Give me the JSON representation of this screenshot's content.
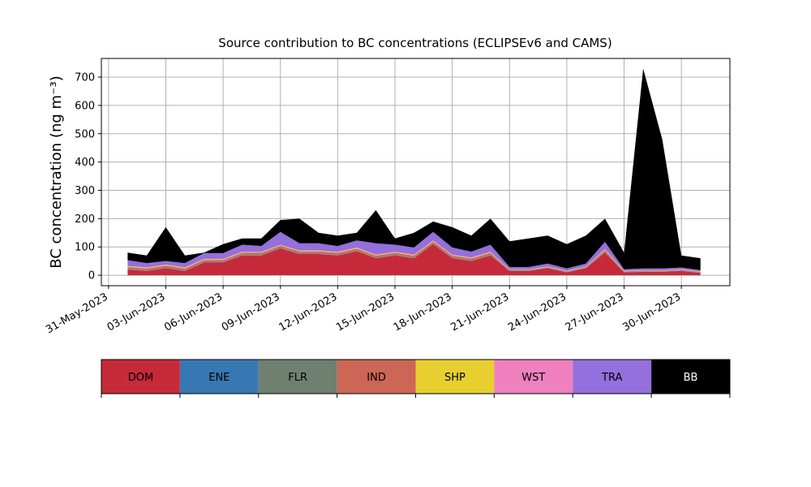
{
  "chart_data": {
    "type": "stacked_area",
    "title": "Source contribution to BC concentrations (ECLIPSEv6 and CAMS)",
    "y_label": "BC concentration (ng m⁻³)",
    "x": [
      "2023-06-01",
      "2023-06-02",
      "2023-06-03",
      "2023-06-04",
      "2023-06-05",
      "2023-06-06",
      "2023-06-07",
      "2023-06-08",
      "2023-06-09",
      "2023-06-10",
      "2023-06-11",
      "2023-06-12",
      "2023-06-13",
      "2023-06-14",
      "2023-06-15",
      "2023-06-16",
      "2023-06-17",
      "2023-06-18",
      "2023-06-19",
      "2023-06-20",
      "2023-06-21",
      "2023-06-22",
      "2023-06-23",
      "2023-06-24",
      "2023-06-25",
      "2023-06-26",
      "2023-06-27",
      "2023-06-28",
      "2023-06-29",
      "2023-06-30",
      "2023-07-01"
    ],
    "series": [
      {
        "name": "DOM",
        "color": "#c62a3a",
        "values": [
          20,
          15,
          25,
          15,
          45,
          45,
          70,
          70,
          95,
          75,
          75,
          70,
          85,
          60,
          70,
          60,
          110,
          60,
          50,
          70,
          15,
          15,
          25,
          10,
          25,
          80,
          10,
          12,
          12,
          15,
          8
        ]
      },
      {
        "name": "ENE",
        "color": "#3778b4",
        "values": [
          1,
          1,
          1,
          1,
          1,
          1,
          1,
          1,
          1,
          1,
          1,
          1,
          1,
          1,
          1,
          1,
          1,
          1,
          1,
          1,
          1,
          1,
          1,
          1,
          1,
          1,
          1,
          1,
          1,
          1,
          1
        ]
      },
      {
        "name": "FLR",
        "color": "#6f8070",
        "values": [
          2,
          2,
          2,
          2,
          2,
          2,
          2,
          2,
          2,
          2,
          2,
          2,
          2,
          2,
          2,
          2,
          2,
          2,
          2,
          2,
          1,
          1,
          1,
          1,
          1,
          2,
          1,
          1,
          1,
          1,
          1
        ]
      },
      {
        "name": "IND",
        "color": "#cc6655",
        "values": [
          6,
          6,
          6,
          6,
          6,
          6,
          6,
          6,
          6,
          6,
          6,
          6,
          6,
          6,
          6,
          6,
          6,
          6,
          6,
          6,
          2,
          2,
          2,
          2,
          2,
          6,
          2,
          2,
          2,
          2,
          2
        ]
      },
      {
        "name": "SHP",
        "color": "#e8cf30",
        "values": [
          2,
          2,
          2,
          2,
          2,
          2,
          2,
          2,
          2,
          2,
          2,
          2,
          2,
          2,
          2,
          2,
          2,
          2,
          2,
          2,
          1,
          1,
          1,
          1,
          1,
          2,
          1,
          1,
          1,
          1,
          1
        ]
      },
      {
        "name": "WST",
        "color": "#f080c0",
        "values": [
          2,
          2,
          2,
          2,
          2,
          2,
          2,
          2,
          2,
          2,
          2,
          2,
          2,
          2,
          2,
          2,
          2,
          2,
          2,
          2,
          1,
          1,
          1,
          1,
          1,
          2,
          1,
          1,
          1,
          1,
          1
        ]
      },
      {
        "name": "TRA",
        "color": "#9370db",
        "values": [
          20,
          15,
          12,
          15,
          20,
          20,
          25,
          20,
          45,
          25,
          25,
          20,
          25,
          40,
          25,
          25,
          30,
          25,
          20,
          25,
          8,
          8,
          10,
          8,
          10,
          25,
          5,
          6,
          6,
          6,
          4
        ]
      },
      {
        "name": "BB",
        "color": "#000000",
        "values": [
          27,
          27,
          120,
          27,
          2,
          32,
          22,
          27,
          42,
          87,
          37,
          37,
          27,
          117,
          22,
          52,
          37,
          72,
          57,
          92,
          91,
          101,
          99,
          86,
          99,
          82,
          59,
          706,
          456,
          43,
          42
        ]
      }
    ],
    "xlim": [
      "2023-05-30T15:00",
      "2023-07-02T13:00"
    ],
    "xticks": [
      {
        "value": "2023-05-31",
        "label": "31-May-2023"
      },
      {
        "value": "2023-06-03",
        "label": "03-Jun-2023"
      },
      {
        "value": "2023-06-06",
        "label": "06-Jun-2023"
      },
      {
        "value": "2023-06-09",
        "label": "09-Jun-2023"
      },
      {
        "value": "2023-06-12",
        "label": "12-Jun-2023"
      },
      {
        "value": "2023-06-15",
        "label": "15-Jun-2023"
      },
      {
        "value": "2023-06-18",
        "label": "18-Jun-2023"
      },
      {
        "value": "2023-06-21",
        "label": "21-Jun-2023"
      },
      {
        "value": "2023-06-24",
        "label": "24-Jun-2023"
      },
      {
        "value": "2023-06-27",
        "label": "27-Jun-2023"
      },
      {
        "value": "2023-06-30",
        "label": "30-Jun-2023"
      }
    ],
    "ylim": [
      -37,
      766
    ],
    "yticks": [
      0,
      100,
      200,
      300,
      400,
      500,
      600,
      700
    ],
    "grid": true
  }
}
